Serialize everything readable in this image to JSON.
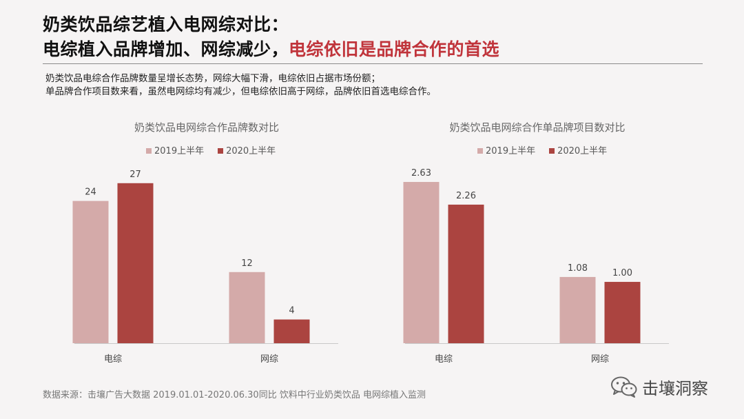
{
  "header": {
    "line1": "奶类饮品综艺植入电网综对比：",
    "line2_prefix": "电综植入品牌增加、网综减少，",
    "line2_highlight": "电综依旧是品牌合作的首选"
  },
  "description": [
    "奶类饮品电综合作品牌数量呈增长态势，网综大幅下滑，电综依旧占据市场份额；",
    "单品牌合作项目数来看，虽然电网综均有减少，但电综依旧高于网综，品牌依旧首选电综合作。"
  ],
  "legend_labels": [
    "2019上半年",
    "2020上半年"
  ],
  "colors": {
    "series_2019": "#d4aaa9",
    "series_2020": "#ab4440",
    "highlight": "#c0343b"
  },
  "chart_data": [
    {
      "type": "bar",
      "title": "奶类饮品电网综合作品牌数对比",
      "categories": [
        "电综",
        "网综"
      ],
      "series": [
        {
          "name": "2019上半年",
          "values": [
            24,
            12
          ],
          "labels": [
            "24",
            "12"
          ]
        },
        {
          "name": "2020上半年",
          "values": [
            27,
            4
          ],
          "labels": [
            "27",
            "4"
          ]
        }
      ],
      "ylim": [
        0,
        30
      ]
    },
    {
      "type": "bar",
      "title": "奶类饮品电网综合作单品牌项目数对比",
      "categories": [
        "电综",
        "网综"
      ],
      "series": [
        {
          "name": "2019上半年",
          "values": [
            2.63,
            1.08
          ],
          "labels": [
            "2.63",
            "1.08"
          ]
        },
        {
          "name": "2020上半年",
          "values": [
            2.26,
            1.0
          ],
          "labels": [
            "2.26",
            "1.00"
          ]
        }
      ],
      "ylim": [
        0,
        2.9
      ]
    }
  ],
  "source": "数据来源：击壤广告大数据 2019.01.01-2020.06.30同比 饮料中行业奶类饮品 电网综植入监测",
  "brand": {
    "name": "击壤洞察",
    "icon": "wechat-icon"
  }
}
